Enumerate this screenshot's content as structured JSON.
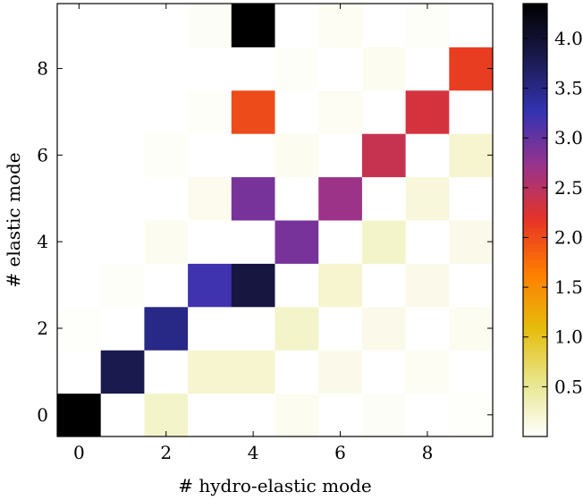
{
  "chart_data": {
    "type": "heatmap",
    "xlabel": "# hydro-elastic mode",
    "ylabel": "# elastic mode",
    "x_categories": [
      0,
      1,
      2,
      3,
      4,
      5,
      6,
      7,
      8,
      9
    ],
    "y_categories": [
      0,
      1,
      2,
      3,
      4,
      5,
      6,
      7,
      8,
      9
    ],
    "x_ticks": [
      0,
      2,
      4,
      6,
      8
    ],
    "y_ticks": [
      0,
      2,
      4,
      6,
      8
    ],
    "colorbar": {
      "min": 0.0,
      "max": 4.35,
      "ticks": [
        0.5,
        1.0,
        1.5,
        2.0,
        2.5,
        3.0,
        3.5,
        4.0
      ],
      "tick_labels": [
        "0.5",
        "1.0",
        "1.5",
        "2.0",
        "2.5",
        "3.0",
        "3.5",
        "4.0"
      ],
      "colormap": "CMRmap_r",
      "colors": [
        "#ffffff",
        "#e8e68c",
        "#e6bc0c",
        "#ff7f00",
        "#e63326",
        "#99338c",
        "#3333b3",
        "#1a1a4d",
        "#000000"
      ]
    },
    "values": [
      [
        4.35,
        0.0,
        0.25,
        0.0,
        0.0,
        0.07,
        0.0,
        0.04,
        0.0,
        0.02
      ],
      [
        0.0,
        3.8,
        0.0,
        0.22,
        0.22,
        0.0,
        0.1,
        0.0,
        0.05,
        0.0
      ],
      [
        0.02,
        0.0,
        3.5,
        0.0,
        0.0,
        0.25,
        0.0,
        0.1,
        0.0,
        0.07
      ],
      [
        0.0,
        0.03,
        0.0,
        3.2,
        3.9,
        0.0,
        0.22,
        0.0,
        0.1,
        0.0
      ],
      [
        0.0,
        0.0,
        0.07,
        0.0,
        0.0,
        2.9,
        0.0,
        0.25,
        0.0,
        0.1
      ],
      [
        0.0,
        0.0,
        0.0,
        0.08,
        2.9,
        0.0,
        2.7,
        0.0,
        0.17,
        0.0
      ],
      [
        0.0,
        0.0,
        0.03,
        0.0,
        0.0,
        0.07,
        0.0,
        2.4,
        0.0,
        0.22
      ],
      [
        0.0,
        0.0,
        0.0,
        0.03,
        2.0,
        0.0,
        0.05,
        0.0,
        2.3,
        0.0
      ],
      [
        0.0,
        0.0,
        0.0,
        0.0,
        0.0,
        0.03,
        0.0,
        0.07,
        0.0,
        2.1
      ],
      [
        0.0,
        0.0,
        0.0,
        0.04,
        4.35,
        0.0,
        0.05,
        0.0,
        0.03,
        0.0
      ]
    ]
  }
}
